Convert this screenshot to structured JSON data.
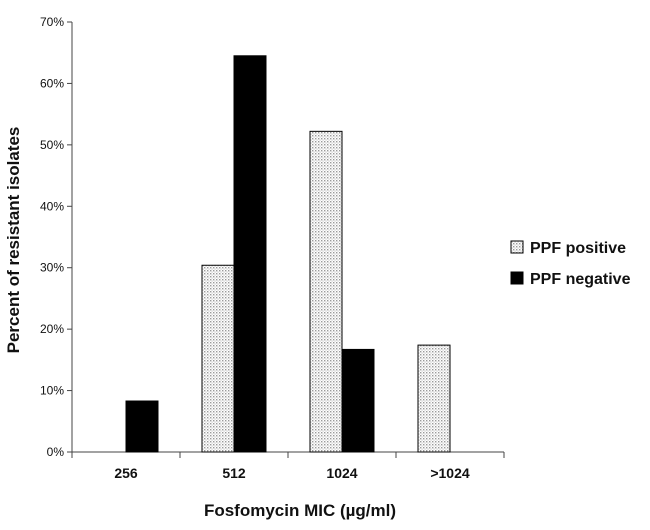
{
  "chart_data": {
    "type": "bar",
    "title": "",
    "xlabel": "Fosfomycin MIC (µg/ml)",
    "ylabel": "Percent of  resistant isolates",
    "categories": [
      "256",
      "512",
      "1024",
      ">1024"
    ],
    "series": [
      {
        "name": "PPF positive",
        "values": [
          0,
          30.4,
          52.2,
          17.4
        ],
        "color": "#ececec",
        "pattern": "dotted"
      },
      {
        "name": "PPF negative",
        "values": [
          8.3,
          64.5,
          16.7,
          0
        ],
        "color": "#000000",
        "pattern": "solid"
      }
    ],
    "ylim": [
      0,
      70
    ],
    "yticks": [
      "0%",
      "10%",
      "20%",
      "30%",
      "40%",
      "50%",
      "60%",
      "70%"
    ],
    "grid": false,
    "legend": "right"
  }
}
